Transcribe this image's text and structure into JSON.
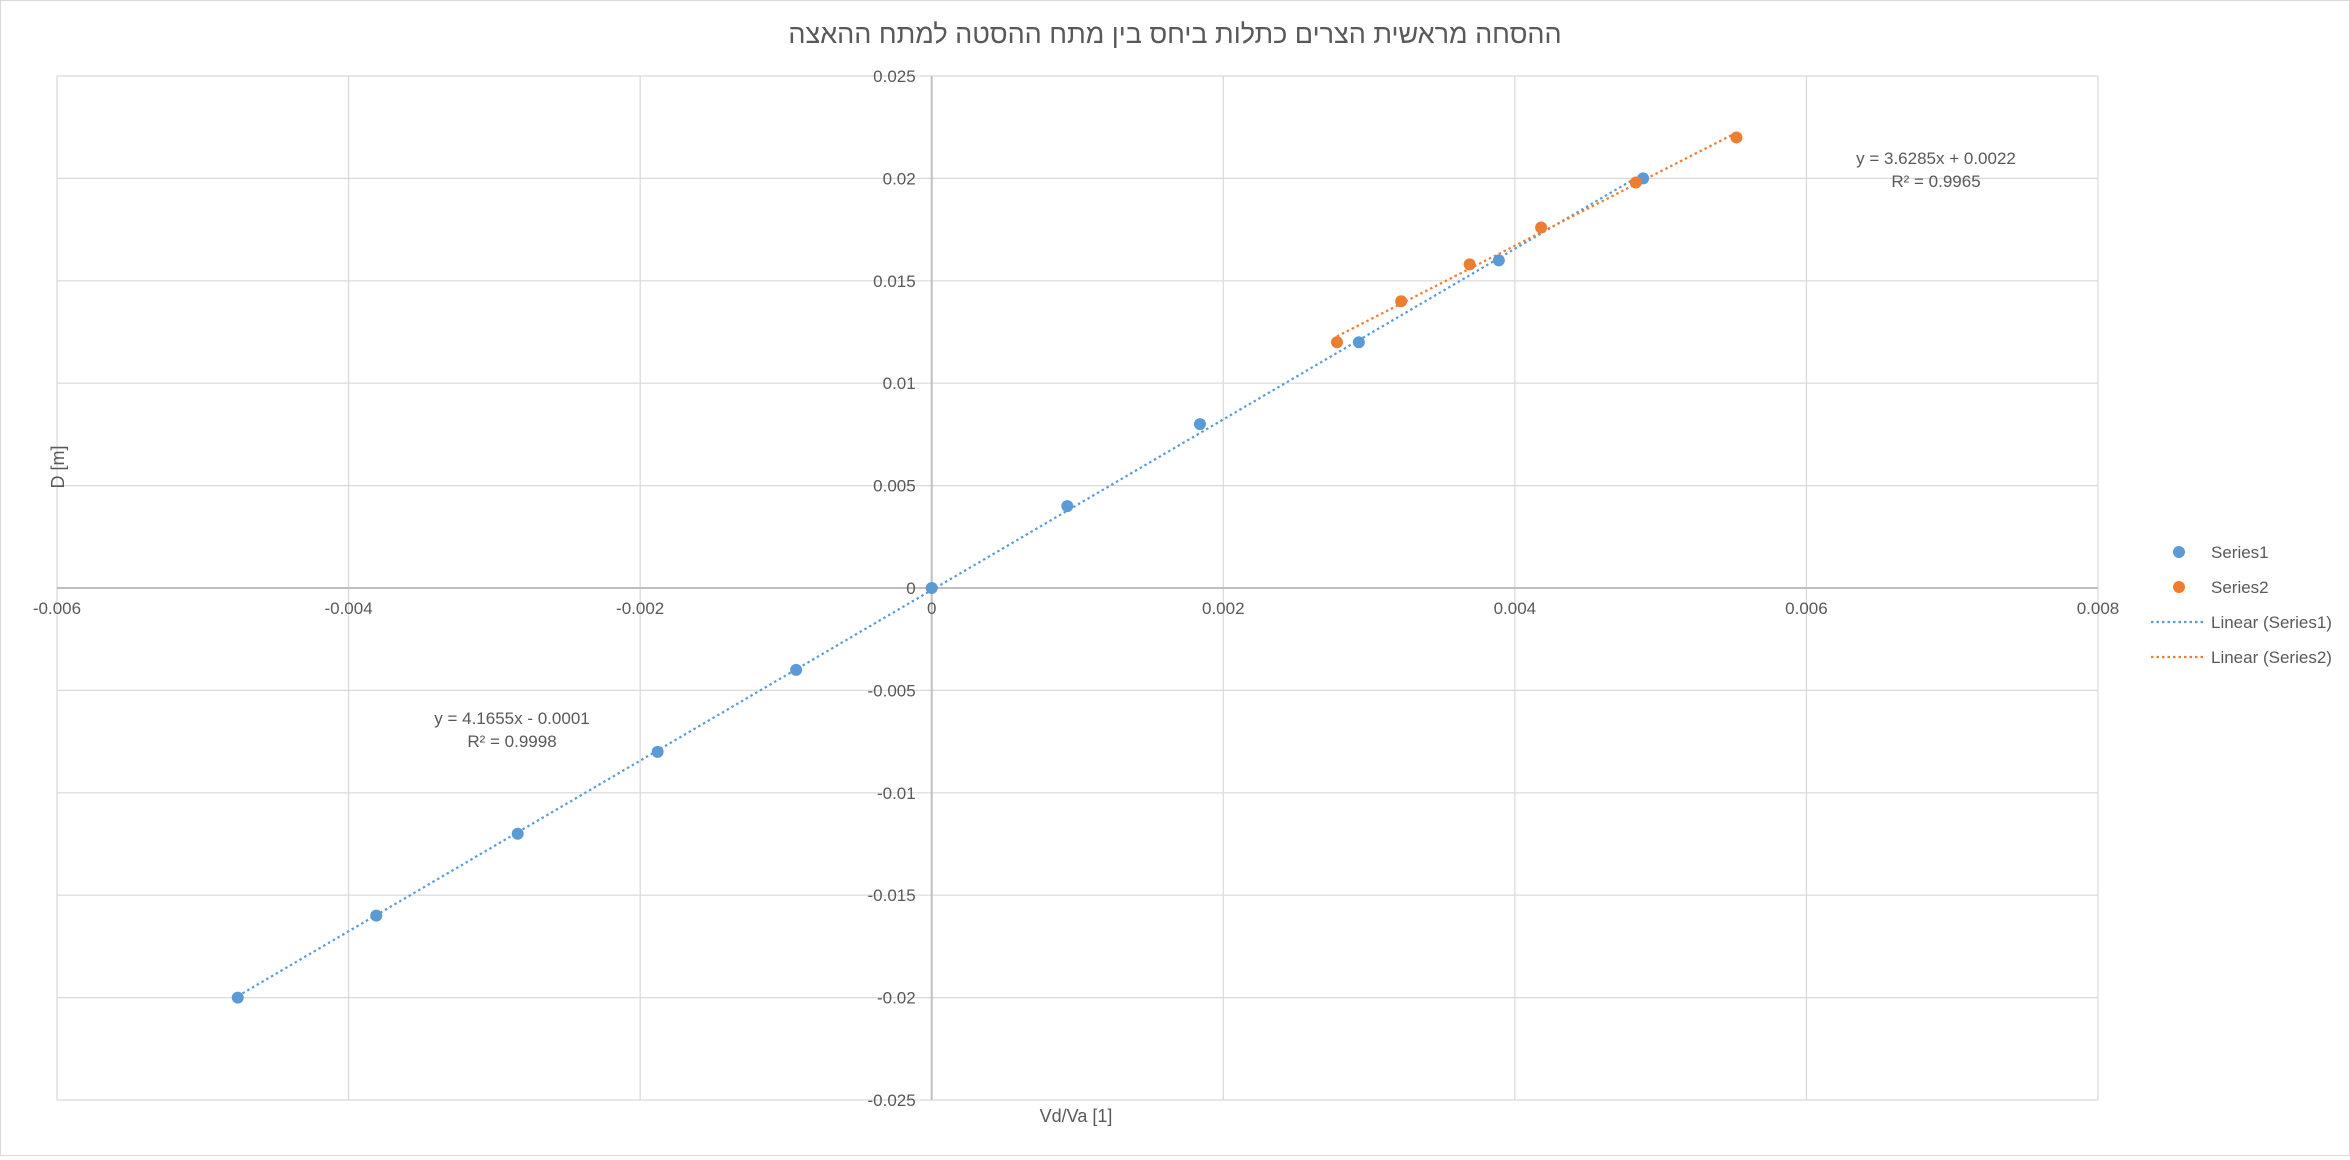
{
  "chart_data": {
    "type": "scatter",
    "title": "ההסחה מראשית הצרים כתלות ביחס בין מתח ההסטה למתח ההאצה",
    "xlabel": "Vd/Va [1]",
    "ylabel": "D [m]",
    "xlim": [
      -0.006,
      0.008
    ],
    "ylim": [
      -0.025,
      0.025
    ],
    "x_ticks": [
      -0.006,
      -0.004,
      -0.002,
      0,
      0.002,
      0.004,
      0.006,
      0.008
    ],
    "x_tick_labels": [
      "-0.006",
      "-0.004",
      "-0.002",
      "0",
      "0.002",
      "0.004",
      "0.006",
      "0.008"
    ],
    "y_ticks": [
      0.025,
      0.02,
      0.015,
      0.01,
      0.005,
      0,
      -0.005,
      -0.01,
      -0.015,
      -0.02,
      -0.025
    ],
    "y_tick_labels": [
      "0.025",
      "0.02",
      "0.015",
      "0.01",
      "0.005",
      "0",
      "-0.005",
      "-0.01",
      "-0.015",
      "-0.02",
      "-0.025"
    ],
    "grid": true,
    "legend_position": "right",
    "series": [
      {
        "name": "Series1",
        "color": "#5b9bd5",
        "x": [
          -0.00476,
          -0.00381,
          -0.00284,
          -0.00188,
          -0.00093,
          0,
          0.00093,
          0.00184,
          0.00293,
          0.00389,
          0.00488
        ],
        "y": [
          -0.02,
          -0.016,
          -0.012,
          -0.008,
          -0.004,
          0,
          0.004,
          0.008,
          0.012,
          0.016,
          0.02
        ]
      },
      {
        "name": "Series2",
        "color": "#ed7d31",
        "x": [
          0.00278,
          0.00322,
          0.00369,
          0.00418,
          0.00483,
          0.00552
        ],
        "y": [
          0.012,
          0.014,
          0.0158,
          0.0176,
          0.0198,
          0.022
        ]
      }
    ],
    "trendlines": [
      {
        "name": "Linear (Series1)",
        "color": "#5b9bd5",
        "slope": 4.1655,
        "intercept": -0.0001,
        "x_range": [
          -0.00476,
          0.00488
        ],
        "equation": "y = 4.1655x - 0.0001",
        "r2": "R² = 0.9998"
      },
      {
        "name": "Linear (Series2)",
        "color": "#ed7d31",
        "slope": 3.6285,
        "intercept": 0.0022,
        "x_range": [
          0.00278,
          0.00552
        ],
        "equation": "y = 3.6285x + 0.0022",
        "r2": "R² = 0.9965"
      }
    ],
    "legend": [
      "Series1",
      "Series2",
      "Linear (Series1)",
      "Linear (Series2)"
    ]
  }
}
